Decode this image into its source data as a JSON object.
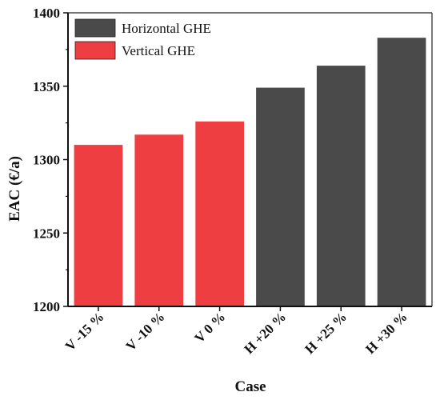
{
  "chart_data": {
    "type": "bar",
    "title": "",
    "xlabel": "Case",
    "ylabel": "EAC (€/a)",
    "ylim": [
      1200,
      1400
    ],
    "yticks": [
      1200,
      1250,
      1300,
      1350,
      1400
    ],
    "grid": false,
    "legend_position": "top-left",
    "categories": [
      "V -15 %",
      "V -10 %",
      "V 0 %",
      "H +20 %",
      "H +25 %",
      "H +30 %"
    ],
    "values": [
      1310,
      1317,
      1326,
      1349,
      1364,
      1383
    ],
    "bar_series": [
      "Vertical GHE",
      "Vertical GHE",
      "Vertical GHE",
      "Horizontal GHE",
      "Horizontal GHE",
      "Horizontal GHE"
    ],
    "series": [
      {
        "name": "Horizontal GHE",
        "color": "#4a4a4a"
      },
      {
        "name": "Vertical GHE",
        "color": "#ef3e42"
      }
    ]
  }
}
